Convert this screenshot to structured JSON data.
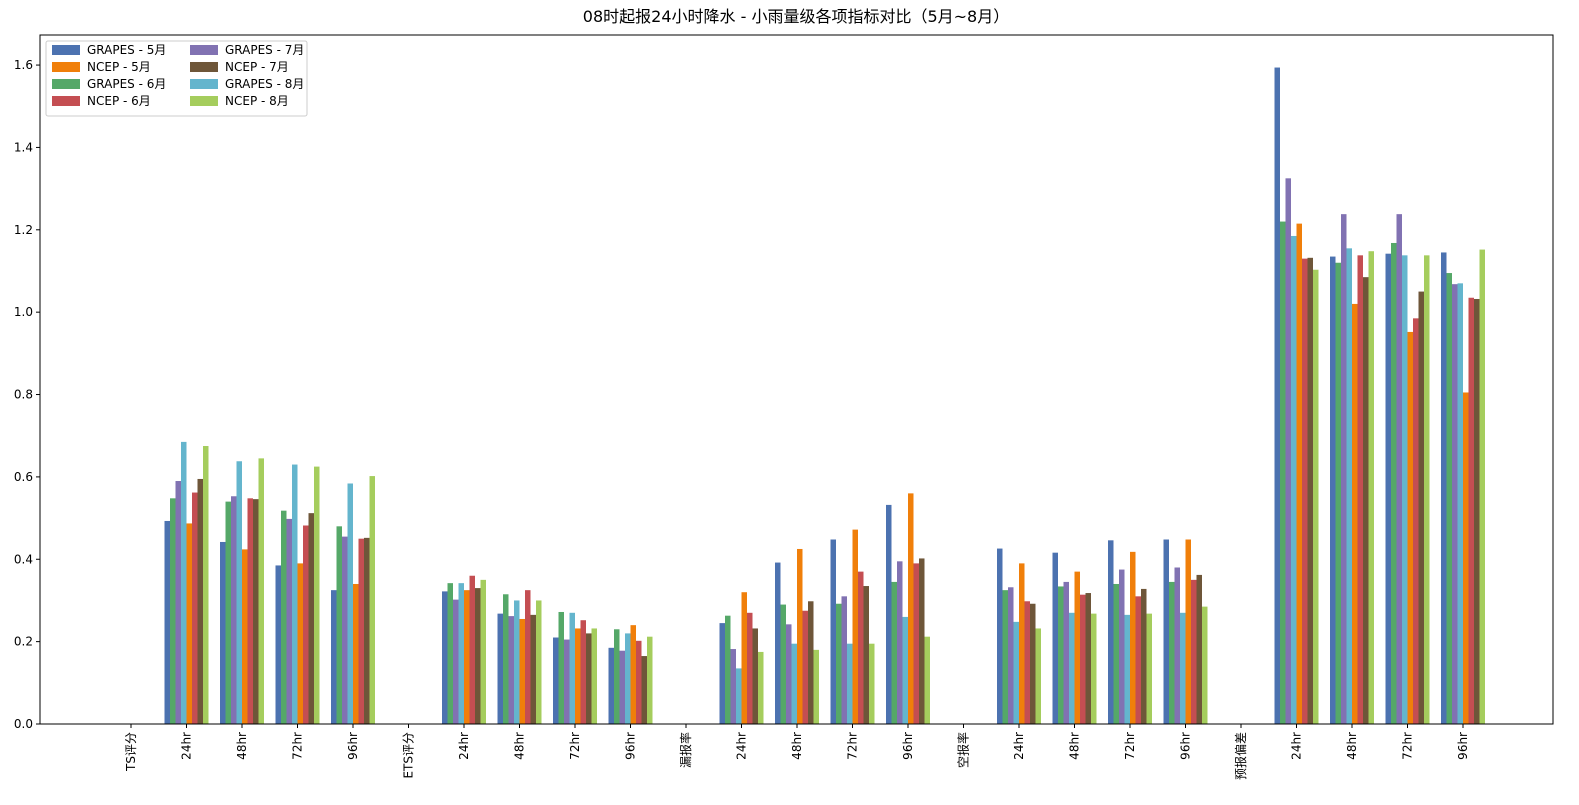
{
  "chart_data": {
    "type": "bar",
    "title": "08时起报24小时降水 - 小雨量级各项指标对比（5月~8月）",
    "categories": [
      "TS评分",
      "24hr",
      "48hr",
      "72hr",
      "96hr",
      "ETS评分",
      "24hr",
      "48hr",
      "72hr",
      "96hr",
      "漏报率",
      "24hr",
      "48hr",
      "72hr",
      "96hr",
      "空报率",
      "24hr",
      "48hr",
      "72hr",
      "96hr",
      "预报偏差",
      "24hr",
      "48hr",
      "72hr",
      "96hr"
    ],
    "series": [
      {
        "name": "GRAPES - 5月",
        "color": "#4c72b0",
        "values": [
          null,
          0.493,
          0.442,
          0.385,
          0.325,
          null,
          0.322,
          0.268,
          0.21,
          0.185,
          null,
          0.245,
          0.392,
          0.448,
          0.532,
          null,
          0.426,
          0.416,
          0.446,
          0.448,
          null,
          1.594,
          1.135,
          1.142,
          1.145
        ]
      },
      {
        "name": "GRAPES - 6月",
        "color": "#55a868",
        "values": [
          null,
          0.548,
          0.54,
          0.518,
          0.48,
          null,
          0.342,
          0.315,
          0.272,
          0.23,
          null,
          0.263,
          0.29,
          0.292,
          0.345,
          null,
          0.325,
          0.334,
          0.34,
          0.345,
          null,
          1.22,
          1.12,
          1.168,
          1.095
        ]
      },
      {
        "name": "GRAPES - 7月",
        "color": "#8172b2",
        "values": [
          null,
          0.59,
          0.553,
          0.498,
          0.455,
          null,
          0.302,
          0.262,
          0.205,
          0.178,
          null,
          0.182,
          0.242,
          0.31,
          0.395,
          null,
          0.332,
          0.345,
          0.375,
          0.38,
          null,
          1.325,
          1.238,
          1.238,
          1.068
        ]
      },
      {
        "name": "GRAPES - 8月",
        "color": "#64b5cd",
        "values": [
          null,
          0.685,
          0.638,
          0.63,
          0.584,
          null,
          0.342,
          0.3,
          0.27,
          0.22,
          null,
          0.135,
          0.195,
          0.195,
          0.26,
          null,
          0.248,
          0.27,
          0.265,
          0.27,
          null,
          1.185,
          1.155,
          1.138,
          1.07
        ]
      },
      {
        "name": "NCEP - 5月",
        "color": "#f07f0a",
        "values": [
          null,
          0.487,
          0.424,
          0.39,
          0.34,
          null,
          0.325,
          0.255,
          0.232,
          0.24,
          null,
          0.32,
          0.425,
          0.472,
          0.56,
          null,
          0.39,
          0.37,
          0.418,
          0.448,
          null,
          1.215,
          1.02,
          0.952,
          0.805
        ]
      },
      {
        "name": "NCEP - 6月",
        "color": "#c44e52",
        "values": [
          null,
          0.562,
          0.548,
          0.482,
          0.45,
          null,
          0.36,
          0.325,
          0.252,
          0.202,
          null,
          0.27,
          0.275,
          0.37,
          0.39,
          null,
          0.298,
          0.314,
          0.31,
          0.35,
          null,
          1.13,
          1.138,
          0.985,
          1.035
        ]
      },
      {
        "name": "NCEP - 7月",
        "color": "#6e5639",
        "values": [
          null,
          0.595,
          0.546,
          0.512,
          0.452,
          null,
          0.33,
          0.265,
          0.22,
          0.165,
          null,
          0.232,
          0.298,
          0.335,
          0.402,
          null,
          0.292,
          0.318,
          0.328,
          0.362,
          null,
          1.132,
          1.085,
          1.05,
          1.032
        ]
      },
      {
        "name": "NCEP - 8月",
        "color": "#a5cd5d",
        "values": [
          null,
          0.675,
          0.645,
          0.625,
          0.602,
          null,
          0.35,
          0.3,
          0.232,
          0.212,
          null,
          0.175,
          0.18,
          0.195,
          0.212,
          null,
          0.232,
          0.268,
          0.268,
          0.285,
          null,
          1.103,
          1.148,
          1.138,
          1.152
        ]
      }
    ],
    "ylim": [
      0,
      1.673
    ],
    "yticks": [
      {
        "value": 0,
        "label": "0.0"
      },
      0.2,
      0.4,
      0.6,
      0.8,
      {
        "value": 1,
        "label": "1.0"
      },
      1.2,
      1.4,
      1.6
    ],
    "legend": "upper left"
  }
}
